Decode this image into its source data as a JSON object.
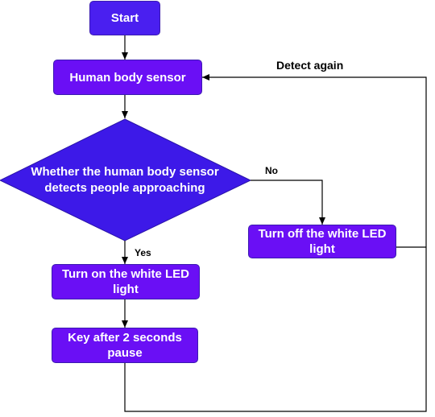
{
  "nodes": {
    "start": "Start",
    "sensor": "Human body sensor",
    "decision": "Whether the human body sensor detects people approaching",
    "led_on": "Turn on the white LED light",
    "pause": "Key after 2 seconds pause",
    "led_off": "Turn off the white LED light"
  },
  "edge_labels": {
    "no": "No",
    "yes": "Yes",
    "loop": "Detect again"
  },
  "colors": {
    "node_fill": "#6a0ff5",
    "start_fill": "#4a1ff0",
    "diamond_fill": "#3d19e8",
    "line": "#000000"
  }
}
